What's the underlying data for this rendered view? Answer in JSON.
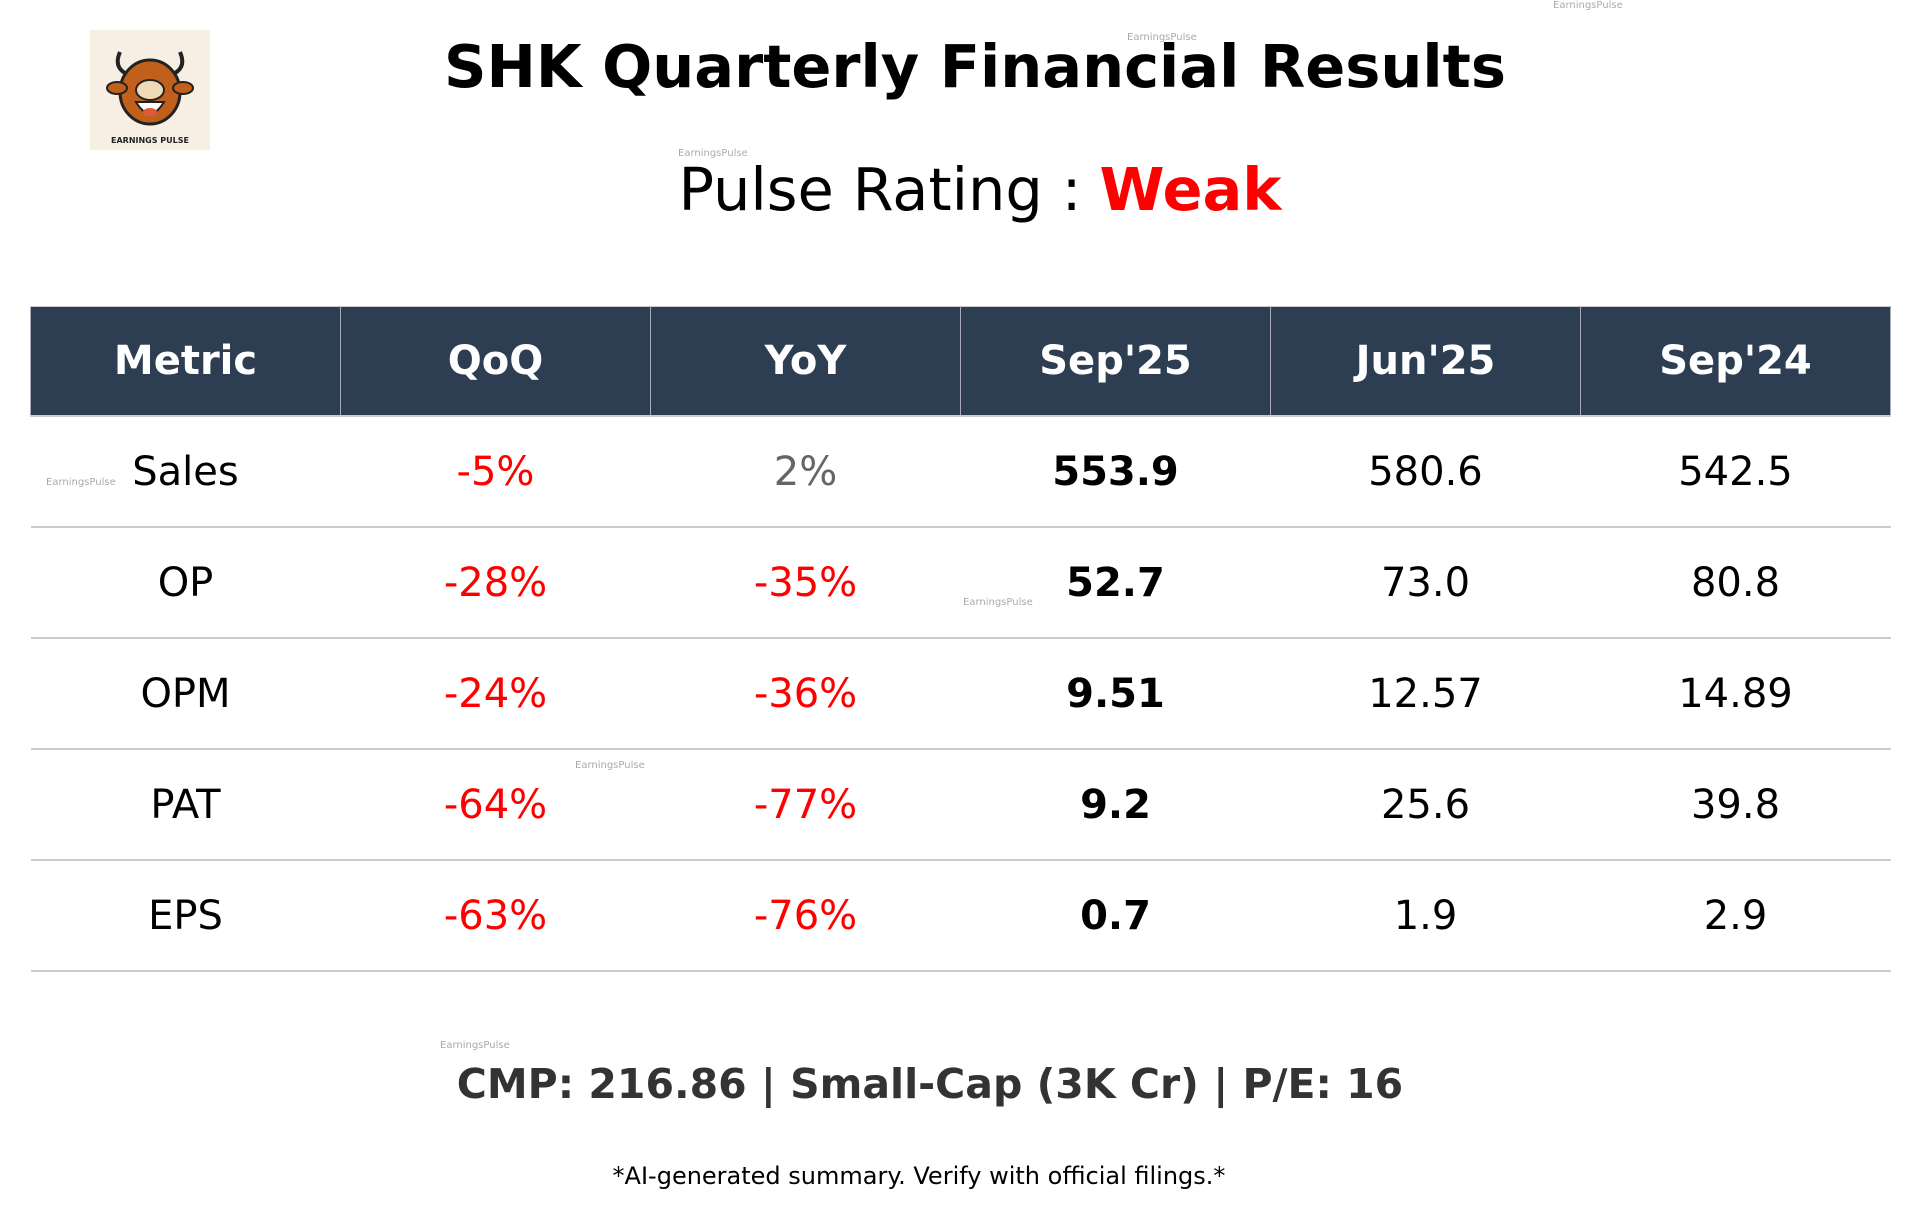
{
  "logo": {
    "text": "EARNINGS PULSE",
    "icon": "bull-logo"
  },
  "title": "SHK Quarterly Financial Results",
  "rating": {
    "label": "Pulse Rating :",
    "value": "Weak",
    "color": "#ff0000"
  },
  "table": {
    "headers": [
      "Metric",
      "QoQ",
      "YoY",
      "Sep'25",
      "Jun'25",
      "Sep'24"
    ],
    "rows": [
      {
        "metric": "Sales",
        "qoq": "-5%",
        "yoy": "2%",
        "sep25": "553.9",
        "jun25": "580.6",
        "sep24": "542.5"
      },
      {
        "metric": "OP",
        "qoq": "-28%",
        "yoy": "-35%",
        "sep25": "52.7",
        "jun25": "73.0",
        "sep24": "80.8"
      },
      {
        "metric": "OPM",
        "qoq": "-24%",
        "yoy": "-36%",
        "sep25": "9.51",
        "jun25": "12.57",
        "sep24": "14.89"
      },
      {
        "metric": "PAT",
        "qoq": "-64%",
        "yoy": "-77%",
        "sep25": "9.2",
        "jun25": "25.6",
        "sep24": "39.8"
      },
      {
        "metric": "EPS",
        "qoq": "-63%",
        "yoy": "-76%",
        "sep25": "0.7",
        "jun25": "1.9",
        "sep24": "2.9"
      }
    ]
  },
  "footer": {
    "cmp": "CMP: 216.86 | Small-Cap (3K Cr) | P/E: 16",
    "disclaimer": "*AI-generated summary. Verify with official filings.*"
  },
  "watermark": "EarningsPulse",
  "colors": {
    "header_bg": "#2e3e52",
    "negative": "#ff0000",
    "neutral": "#666666"
  }
}
